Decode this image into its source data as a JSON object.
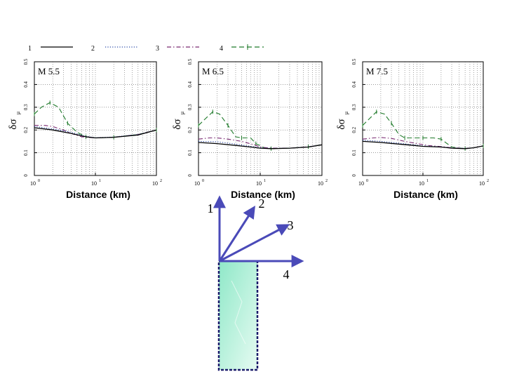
{
  "legend": [
    {
      "label": "1",
      "color": "#000000",
      "style": "solid"
    },
    {
      "label": "2",
      "color": "#2a4aa8",
      "style": "dotted"
    },
    {
      "label": "3",
      "color": "#7a2a72",
      "style": "dashdot"
    },
    {
      "label": "4",
      "color": "#1f7a2a",
      "style": "dash-marker"
    }
  ],
  "chart_data": [
    {
      "type": "line",
      "title": "M 5.5",
      "xlabel": "Distance (km)",
      "ylabel": "δσ",
      "ylabel_sub": "μ",
      "xscale": "log",
      "xlim": [
        1,
        100
      ],
      "ylim": [
        0,
        0.5
      ],
      "xticks": [
        {
          "v": 1,
          "label": "10",
          "exp": "0"
        },
        {
          "v": 10,
          "label": "10",
          "exp": "1"
        },
        {
          "v": 100,
          "label": "10",
          "exp": "2"
        }
      ],
      "yticks": [
        {
          "v": 0,
          "label": "0"
        },
        {
          "v": 0.1,
          "label": "0.1"
        },
        {
          "v": 0.2,
          "label": "0.2"
        },
        {
          "v": 0.3,
          "label": "0.3"
        },
        {
          "v": 0.4,
          "label": "0.4"
        },
        {
          "v": 0.5,
          "label": "0.5"
        }
      ],
      "series": [
        {
          "name": "1",
          "x": [
            1,
            2,
            4,
            7,
            10,
            20,
            50,
            100
          ],
          "y": [
            0.21,
            0.2,
            0.185,
            0.17,
            0.165,
            0.168,
            0.178,
            0.2
          ]
        },
        {
          "name": "2",
          "x": [
            1,
            2,
            4,
            7,
            10,
            20,
            50,
            100
          ],
          "y": [
            0.215,
            0.205,
            0.19,
            0.172,
            0.166,
            0.169,
            0.18,
            0.2
          ]
        },
        {
          "name": "3",
          "x": [
            1,
            1.5,
            2,
            3,
            4,
            6,
            10,
            20,
            50,
            100
          ],
          "y": [
            0.22,
            0.22,
            0.215,
            0.2,
            0.185,
            0.17,
            0.165,
            0.168,
            0.18,
            0.2
          ]
        },
        {
          "name": "4",
          "x": [
            1,
            1.3,
            1.8,
            2.5,
            3.5,
            5,
            7,
            10,
            20,
            50,
            100
          ],
          "y": [
            0.27,
            0.3,
            0.32,
            0.3,
            0.23,
            0.19,
            0.17,
            0.165,
            0.168,
            0.18,
            0.2
          ]
        }
      ]
    },
    {
      "type": "line",
      "title": "M 6.5",
      "xlabel": "Distance (km)",
      "ylabel": "δσ",
      "ylabel_sub": "μ",
      "xscale": "log",
      "xlim": [
        1,
        100
      ],
      "ylim": [
        0,
        0.5
      ],
      "xticks": [
        {
          "v": 1,
          "label": "10",
          "exp": "0"
        },
        {
          "v": 10,
          "label": "10",
          "exp": "1"
        },
        {
          "v": 100,
          "label": "10",
          "exp": "2"
        }
      ],
      "yticks": [
        {
          "v": 0,
          "label": "0"
        },
        {
          "v": 0.1,
          "label": "0.1"
        },
        {
          "v": 0.2,
          "label": "0.2"
        },
        {
          "v": 0.3,
          "label": "0.3"
        },
        {
          "v": 0.4,
          "label": "0.4"
        },
        {
          "v": 0.5,
          "label": "0.5"
        }
      ],
      "series": [
        {
          "name": "1",
          "x": [
            1,
            2,
            4,
            7,
            10,
            15,
            30,
            60,
            100
          ],
          "y": [
            0.145,
            0.14,
            0.132,
            0.125,
            0.12,
            0.118,
            0.12,
            0.125,
            0.135
          ]
        },
        {
          "name": "2",
          "x": [
            1,
            2,
            4,
            7,
            10,
            15,
            30,
            60,
            100
          ],
          "y": [
            0.15,
            0.148,
            0.138,
            0.128,
            0.122,
            0.119,
            0.12,
            0.126,
            0.135
          ]
        },
        {
          "name": "3",
          "x": [
            1,
            1.5,
            2,
            3,
            5,
            8,
            10,
            15,
            30,
            60,
            100
          ],
          "y": [
            0.16,
            0.165,
            0.165,
            0.16,
            0.15,
            0.135,
            0.125,
            0.12,
            0.12,
            0.126,
            0.135
          ]
        },
        {
          "name": "4",
          "x": [
            1,
            1.3,
            1.7,
            2.2,
            3,
            4,
            5,
            7,
            8.5,
            12,
            15,
            30,
            60,
            100
          ],
          "y": [
            0.22,
            0.25,
            0.28,
            0.27,
            0.22,
            0.17,
            0.165,
            0.165,
            0.14,
            0.12,
            0.118,
            0.12,
            0.126,
            0.135
          ]
        }
      ]
    },
    {
      "type": "line",
      "title": "M 7.5",
      "xlabel": "Distance (km)",
      "ylabel": "δσ",
      "ylabel_sub": "μ",
      "xscale": "log",
      "xlim": [
        1,
        100
      ],
      "ylim": [
        0,
        0.5
      ],
      "xticks": [
        {
          "v": 1,
          "label": "10",
          "exp": "0"
        },
        {
          "v": 10,
          "label": "10",
          "exp": "1"
        },
        {
          "v": 100,
          "label": "10",
          "exp": "2"
        }
      ],
      "yticks": [
        {
          "v": 0,
          "label": "0"
        },
        {
          "v": 0.1,
          "label": "0.1"
        },
        {
          "v": 0.2,
          "label": "0.2"
        },
        {
          "v": 0.3,
          "label": "0.3"
        },
        {
          "v": 0.4,
          "label": "0.4"
        },
        {
          "v": 0.5,
          "label": "0.5"
        }
      ],
      "series": [
        {
          "name": "1",
          "x": [
            1,
            2,
            4,
            7,
            10,
            20,
            30,
            50,
            70,
            100
          ],
          "y": [
            0.15,
            0.145,
            0.138,
            0.132,
            0.128,
            0.125,
            0.12,
            0.118,
            0.122,
            0.13
          ]
        },
        {
          "name": "2",
          "x": [
            1,
            2,
            4,
            7,
            10,
            20,
            30,
            50,
            70,
            100
          ],
          "y": [
            0.155,
            0.15,
            0.142,
            0.135,
            0.13,
            0.126,
            0.121,
            0.119,
            0.122,
            0.13
          ]
        },
        {
          "name": "3",
          "x": [
            1,
            1.5,
            2,
            3,
            5,
            8,
            12,
            20,
            30,
            50,
            70,
            100
          ],
          "y": [
            0.16,
            0.165,
            0.167,
            0.163,
            0.15,
            0.14,
            0.132,
            0.127,
            0.122,
            0.119,
            0.122,
            0.13
          ]
        },
        {
          "name": "4",
          "x": [
            1,
            1.3,
            1.7,
            2.3,
            3,
            4,
            5,
            7,
            10,
            15,
            20,
            30,
            50,
            70,
            100
          ],
          "y": [
            0.22,
            0.25,
            0.28,
            0.27,
            0.23,
            0.18,
            0.165,
            0.165,
            0.165,
            0.165,
            0.16,
            0.125,
            0.118,
            0.122,
            0.13
          ]
        }
      ]
    }
  ],
  "diagram": {
    "arrows": [
      {
        "label": "1",
        "angle_deg": 90
      },
      {
        "label": "2",
        "angle_deg": 60
      },
      {
        "label": "3",
        "angle_deg": 30
      },
      {
        "label": "4",
        "angle_deg": 0
      }
    ],
    "arrow_color": "#4a4ab8",
    "fault_fill": "#b8f2dc",
    "fault_border": "#1a1a6a"
  }
}
